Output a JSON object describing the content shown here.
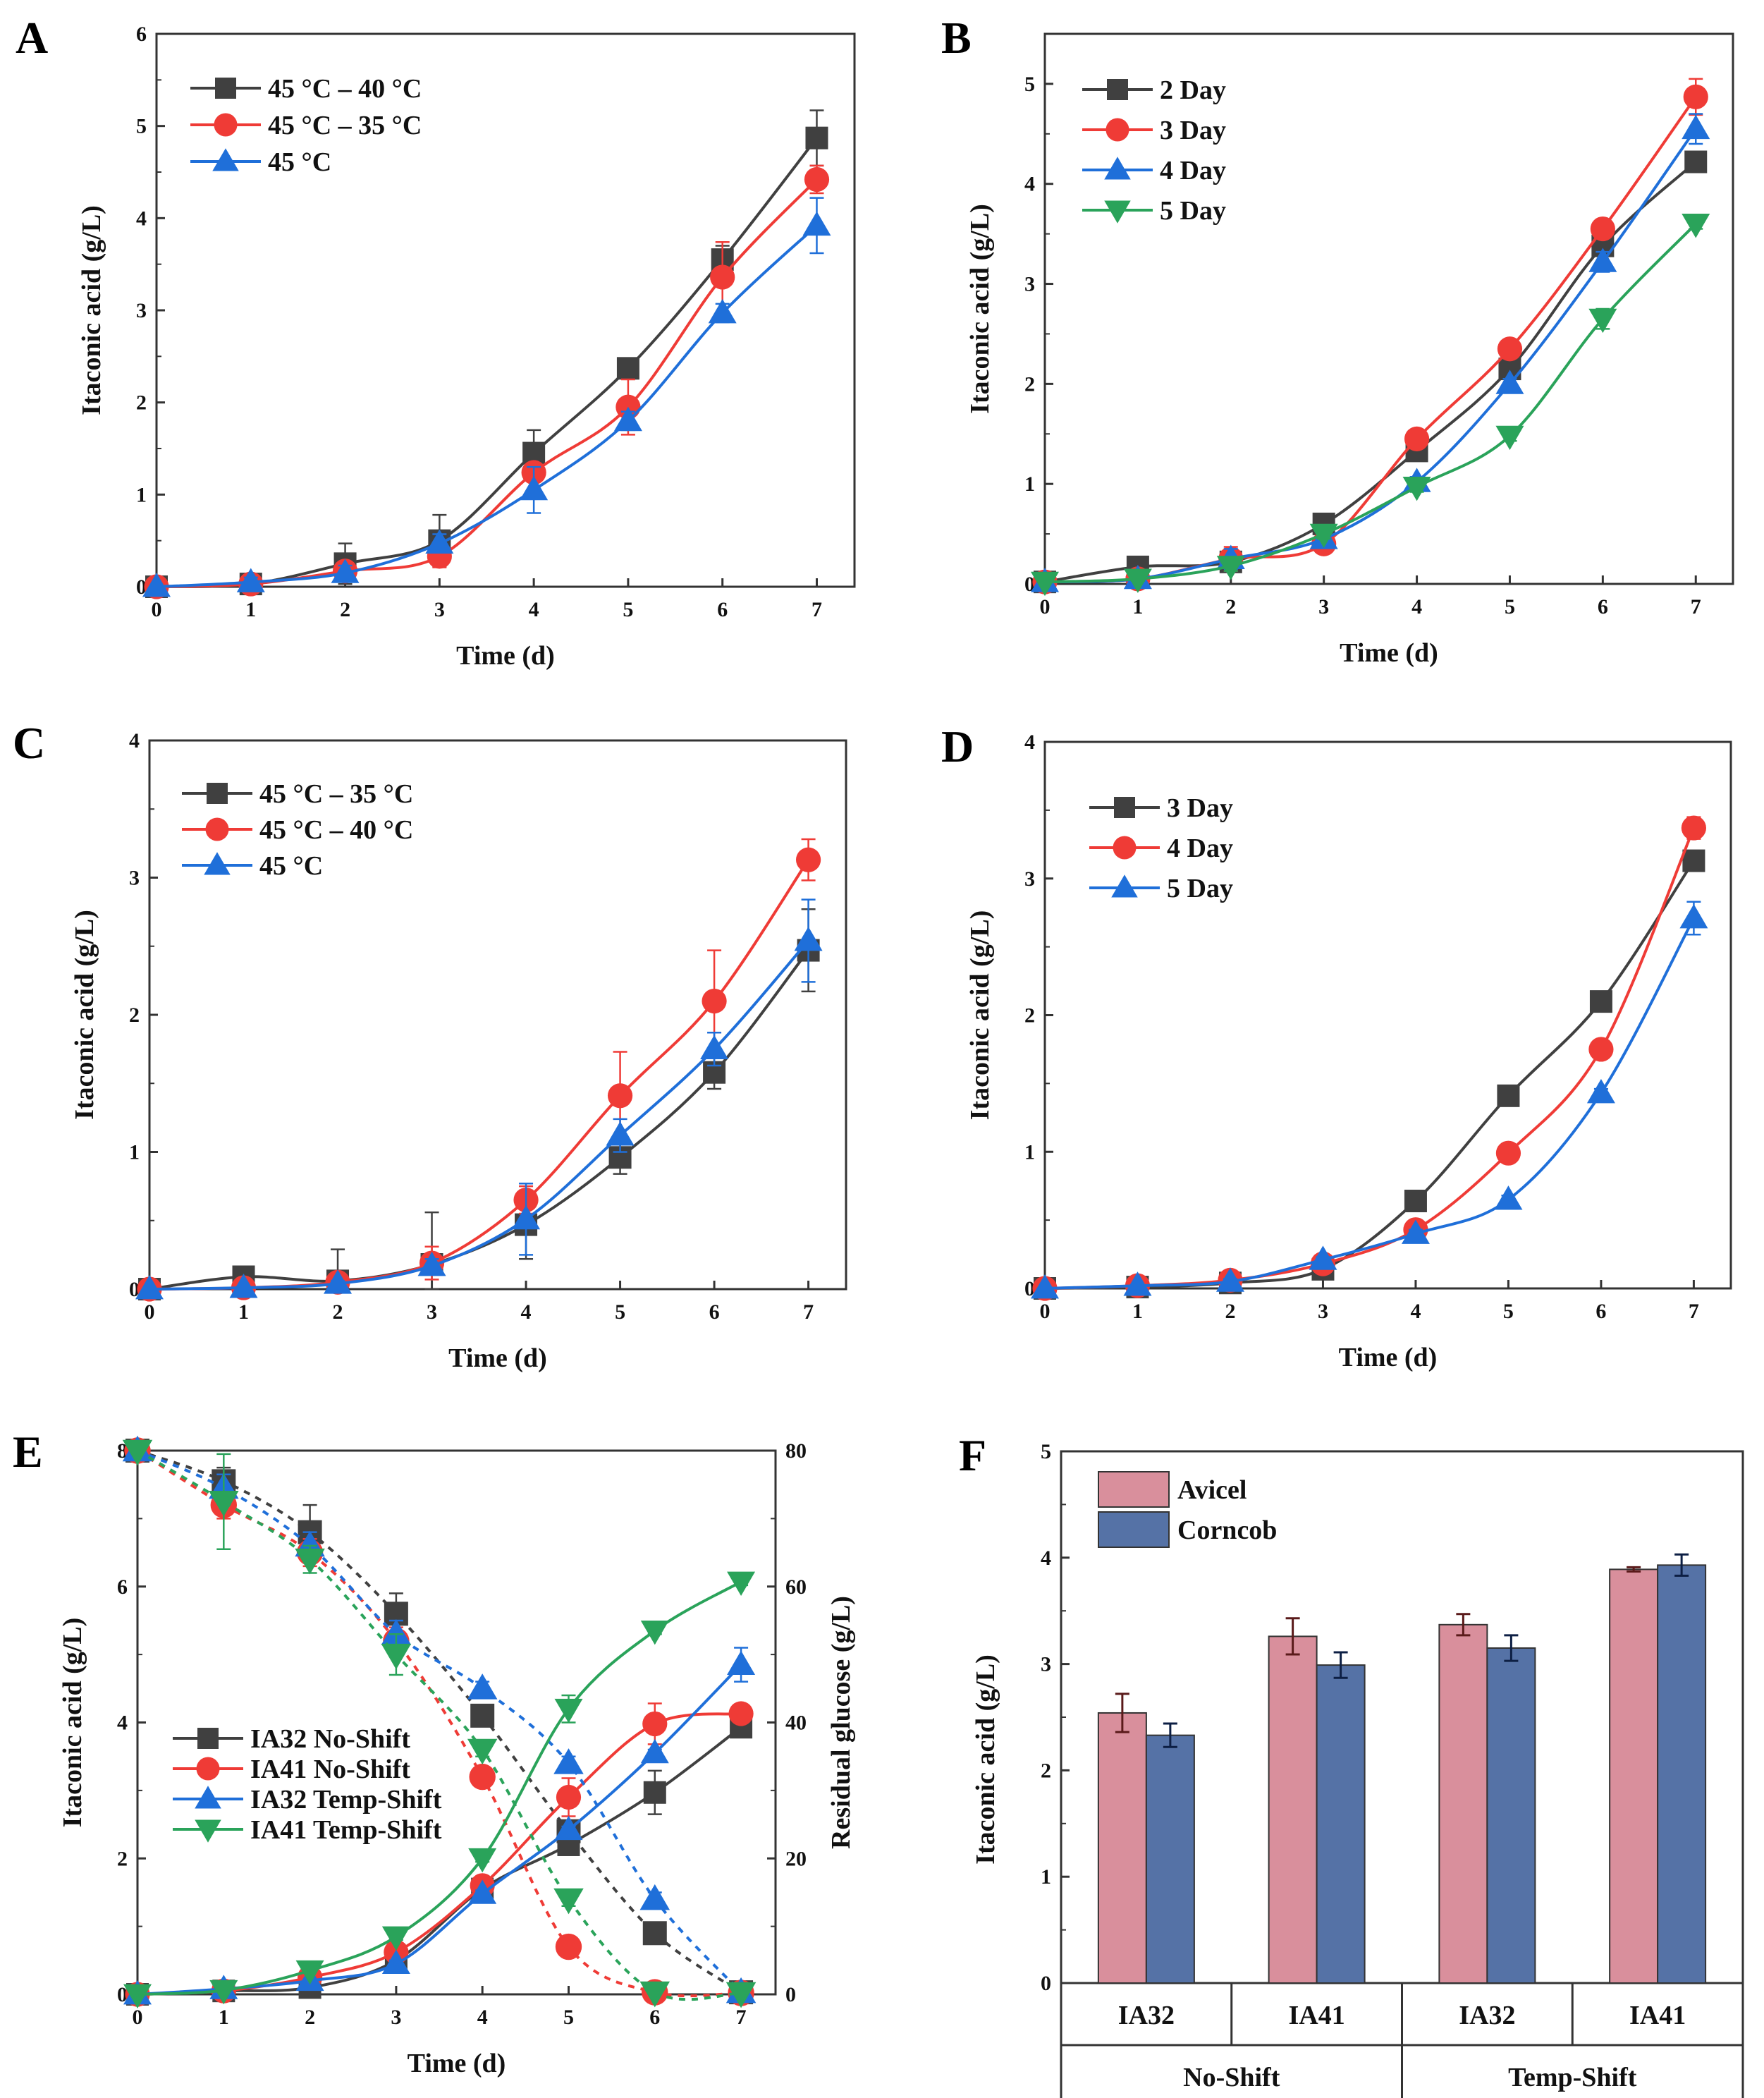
{
  "figure": {
    "panels": [
      "A",
      "B",
      "C",
      "D",
      "E",
      "F"
    ]
  },
  "chart_data": [
    {
      "id": "A",
      "type": "line",
      "title": "",
      "xlabel": "Time (d)",
      "ylabel": "Itaconic acid (g/L)",
      "x": [
        0,
        1,
        2,
        3,
        4,
        5,
        6,
        7
      ],
      "xlim": [
        0,
        7.4
      ],
      "ylim": [
        0,
        6
      ],
      "yticks": [
        0,
        1,
        2,
        3,
        4,
        5,
        6
      ],
      "xticks": [
        0,
        1,
        2,
        3,
        4,
        5,
        6,
        7
      ],
      "legend_position": "top-left",
      "series": [
        {
          "name": "45 °C – 40 °C",
          "color": "#404040",
          "marker": "square",
          "values": [
            0,
            0.03,
            0.25,
            0.5,
            1.45,
            2.37,
            3.55,
            4.87
          ],
          "errors": [
            0,
            0.03,
            0.22,
            0.28,
            0.25,
            0.1,
            0.15,
            0.3
          ]
        },
        {
          "name": "45 °C – 35 °C",
          "color": "#ef3b36",
          "marker": "circle",
          "values": [
            0,
            0.03,
            0.17,
            0.33,
            1.24,
            1.95,
            3.36,
            4.42
          ],
          "errors": [
            0,
            0.03,
            0.1,
            0.12,
            0.1,
            0.3,
            0.38,
            0.15
          ]
        },
        {
          "name": "45 °C",
          "color": "#1f6fd9",
          "marker": "triangle-up",
          "values": [
            0,
            0.05,
            0.15,
            0.47,
            1.05,
            1.8,
            2.97,
            3.92
          ],
          "errors": [
            0,
            0.05,
            0.08,
            0.1,
            0.25,
            0.1,
            0.1,
            0.3
          ]
        }
      ]
    },
    {
      "id": "B",
      "type": "line",
      "title": "",
      "xlabel": "Time (d)",
      "ylabel": "Itaconic acid (g/L)",
      "x": [
        0,
        1,
        2,
        3,
        4,
        5,
        6,
        7
      ],
      "xlim": [
        0,
        7.4
      ],
      "ylim": [
        0,
        5.5
      ],
      "yticks": [
        0,
        1,
        2,
        3,
        4,
        5
      ],
      "xticks": [
        0,
        1,
        2,
        3,
        4,
        5,
        6,
        7
      ],
      "legend_position": "top-left",
      "series": [
        {
          "name": "2 Day",
          "color": "#404040",
          "marker": "square",
          "values": [
            0.02,
            0.17,
            0.22,
            0.6,
            1.33,
            2.15,
            3.38,
            4.22
          ],
          "errors": [
            0,
            0.03,
            0.1,
            0.05,
            0.05,
            0.05,
            0.08,
            0.05
          ]
        },
        {
          "name": "3 Day",
          "color": "#ef3b36",
          "marker": "circle",
          "values": [
            0.02,
            0.05,
            0.25,
            0.4,
            1.45,
            2.35,
            3.55,
            4.87
          ],
          "errors": [
            0,
            0.02,
            0.12,
            0.05,
            0.05,
            0.05,
            0.05,
            0.18
          ]
        },
        {
          "name": "4 Day",
          "color": "#1f6fd9",
          "marker": "triangle-up",
          "values": [
            0.02,
            0.05,
            0.25,
            0.45,
            1.02,
            2.0,
            3.22,
            4.55
          ],
          "errors": [
            0,
            0.02,
            0.1,
            0.05,
            0.05,
            0.05,
            0.1,
            0.15
          ]
        },
        {
          "name": "5 Day",
          "color": "#2aa35a",
          "marker": "triangle-down",
          "values": [
            0.02,
            0.05,
            0.18,
            0.5,
            0.97,
            1.48,
            2.65,
            3.6
          ],
          "errors": [
            0,
            0.02,
            0.05,
            0.05,
            0.05,
            0.05,
            0.1,
            0.05
          ]
        }
      ]
    },
    {
      "id": "C",
      "type": "line",
      "title": "",
      "xlabel": "Time (d)",
      "ylabel": "Itaconic acid (g/L)",
      "x": [
        0,
        1,
        2,
        3,
        4,
        5,
        6,
        7
      ],
      "xlim": [
        0,
        7.4
      ],
      "ylim": [
        0,
        4
      ],
      "yticks": [
        0,
        1,
        2,
        3,
        4
      ],
      "xticks": [
        0,
        1,
        2,
        3,
        4,
        5,
        6,
        7
      ],
      "legend_position": "top-left",
      "series": [
        {
          "name": "45 °C – 35 °C",
          "color": "#404040",
          "marker": "square",
          "values": [
            0,
            0.09,
            0.06,
            0.18,
            0.47,
            0.96,
            1.58,
            2.47
          ],
          "errors": [
            0,
            0.02,
            0.23,
            0.38,
            0.25,
            0.12,
            0.12,
            0.3
          ]
        },
        {
          "name": "45 °C – 40 °C",
          "color": "#ef3b36",
          "marker": "circle",
          "values": [
            0,
            0.01,
            0.05,
            0.19,
            0.65,
            1.41,
            2.1,
            3.13
          ],
          "errors": [
            0,
            0.01,
            0.02,
            0.12,
            0.1,
            0.32,
            0.37,
            0.15
          ]
        },
        {
          "name": "45 °C",
          "color": "#1f6fd9",
          "marker": "triangle-up",
          "values": [
            0,
            0.01,
            0.04,
            0.17,
            0.51,
            1.12,
            1.75,
            2.54
          ],
          "errors": [
            0,
            0.01,
            0.02,
            0.05,
            0.26,
            0.12,
            0.12,
            0.3
          ]
        }
      ]
    },
    {
      "id": "D",
      "type": "line",
      "title": "",
      "xlabel": "Time (d)",
      "ylabel": "Itaconic acid (g/L)",
      "x": [
        0,
        1,
        2,
        3,
        4,
        5,
        6,
        7
      ],
      "xlim": [
        0,
        7.4
      ],
      "ylim": [
        0,
        4
      ],
      "yticks": [
        0,
        1,
        2,
        3,
        4
      ],
      "xticks": [
        0,
        1,
        2,
        3,
        4,
        5,
        6,
        7
      ],
      "legend_position": "top-left",
      "series": [
        {
          "name": "3 Day",
          "color": "#404040",
          "marker": "square",
          "values": [
            0,
            0.01,
            0.04,
            0.14,
            0.64,
            1.41,
            2.1,
            3.13
          ],
          "errors": [
            0,
            0,
            0.02,
            0.02,
            0.02,
            0.03,
            0.05,
            0.05
          ]
        },
        {
          "name": "4 Day",
          "color": "#ef3b36",
          "marker": "circle",
          "values": [
            0,
            0.02,
            0.06,
            0.18,
            0.43,
            0.99,
            1.75,
            3.37
          ],
          "errors": [
            0,
            0.01,
            0.02,
            0.02,
            0.03,
            0.03,
            0.03,
            0.08
          ]
        },
        {
          "name": "5 Day",
          "color": "#1f6fd9",
          "marker": "triangle-up",
          "values": [
            0,
            0.02,
            0.05,
            0.21,
            0.4,
            0.65,
            1.43,
            2.71
          ],
          "errors": [
            0,
            0.01,
            0.02,
            0.02,
            0.03,
            0.03,
            0.03,
            0.12
          ]
        }
      ]
    },
    {
      "id": "E",
      "type": "line",
      "title": "",
      "xlabel": "Time (d)",
      "ylabel": "Itaconic acid (g/L)",
      "ylabel_right": "Residual glucose (g/L)",
      "x": [
        0,
        1,
        2,
        3,
        4,
        5,
        6,
        7
      ],
      "xlim": [
        0,
        7.4
      ],
      "ylim": [
        0,
        8
      ],
      "ylim_right": [
        0,
        80
      ],
      "yticks": [
        0,
        2,
        4,
        6,
        8
      ],
      "yticks_right": [
        0,
        20,
        40,
        60,
        80
      ],
      "xticks": [
        0,
        1,
        2,
        3,
        4,
        5,
        6,
        7
      ],
      "legend_position": "center-left",
      "series": [
        {
          "name": "IA32  No-Shift",
          "color": "#404040",
          "marker": "square",
          "values": [
            0,
            0.05,
            0.1,
            0.5,
            1.55,
            2.2,
            2.97,
            3.93
          ],
          "errors": [
            0,
            0.02,
            0.02,
            0.05,
            0.05,
            0.1,
            0.32,
            0.05
          ],
          "glucose": [
            80,
            75.5,
            68,
            56,
            41,
            24,
            9,
            0.3
          ],
          "glucose_errors": [
            0,
            2,
            4,
            3,
            1,
            1,
            1,
            0
          ]
        },
        {
          "name": "IA41  No-Shift",
          "color": "#ef3b36",
          "marker": "circle",
          "values": [
            0,
            0.05,
            0.25,
            0.62,
            1.6,
            2.9,
            3.98,
            4.13
          ],
          "errors": [
            0,
            0.02,
            0.02,
            0.05,
            0.05,
            0.28,
            0.3,
            0.05
          ],
          "glucose": [
            80,
            72,
            65,
            52,
            32,
            7,
            0.3,
            0.2
          ],
          "glucose_errors": [
            0,
            2,
            2,
            2,
            1,
            1,
            0,
            0
          ]
        },
        {
          "name": "IA32  Temp-Shift",
          "color": "#1f6fd9",
          "marker": "triangle-up",
          "values": [
            0,
            0.08,
            0.2,
            0.45,
            1.48,
            2.42,
            3.55,
            4.85
          ],
          "errors": [
            0,
            0.02,
            0.02,
            0.05,
            0.05,
            0.05,
            0.05,
            0.25
          ],
          "glucose": [
            80,
            74.5,
            66,
            53,
            45,
            34,
            14,
            0.3
          ],
          "glucose_errors": [
            0,
            2,
            2,
            2,
            1,
            1,
            1,
            0
          ]
        },
        {
          "name": "IA41  Temp-Shift",
          "color": "#2aa35a",
          "marker": "triangle-down",
          "values": [
            0,
            0.06,
            0.35,
            0.85,
            2.0,
            4.2,
            5.35,
            6.07
          ],
          "errors": [
            0,
            0.02,
            0.02,
            0.05,
            0.05,
            0.2,
            0.05,
            0.05
          ],
          "glucose": [
            80,
            72.5,
            64,
            50,
            36,
            14,
            0.3,
            0.2
          ],
          "glucose_errors": [
            0,
            7,
            2,
            3,
            1,
            1,
            0,
            0
          ]
        }
      ]
    },
    {
      "id": "F",
      "type": "bar",
      "title": "",
      "xlabel": "",
      "ylabel": "Itaconic acid (g/L)",
      "ylim": [
        0,
        5
      ],
      "yticks": [
        0,
        1,
        2,
        3,
        4,
        5
      ],
      "categories": [
        "IA32",
        "IA41",
        "IA32",
        "IA41"
      ],
      "category_groups": [
        {
          "label": "No-Shift",
          "span": [
            0,
            1
          ]
        },
        {
          "label": "Temp-Shift",
          "span": [
            2,
            3
          ]
        }
      ],
      "legend_position": "top-left",
      "series": [
        {
          "name": "Avicel",
          "color": "#d98f9c",
          "values": [
            2.54,
            3.26,
            3.37,
            3.89
          ],
          "errors": [
            0.18,
            0.17,
            0.1,
            0.02
          ]
        },
        {
          "name": "Corncob",
          "color": "#5572a6",
          "values": [
            2.33,
            2.99,
            3.15,
            3.93
          ],
          "errors": [
            0.11,
            0.12,
            0.12,
            0.1
          ]
        }
      ]
    }
  ]
}
